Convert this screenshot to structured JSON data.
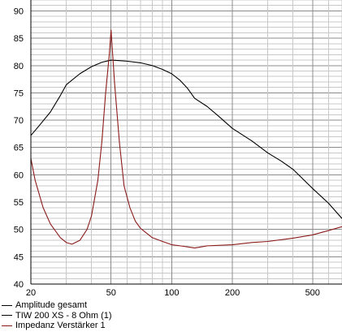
{
  "chart_data": {
    "type": "line",
    "title": "",
    "xlabel": "",
    "ylabel": "",
    "x_scale": "log",
    "xlim": [
      20,
      700
    ],
    "ylim": [
      40,
      92
    ],
    "grid": true,
    "legend_position": "bottom-left",
    "x_tick_labels": [
      {
        "value": 20,
        "label": "20"
      },
      {
        "value": 50,
        "label": "50"
      },
      {
        "value": 100,
        "label": "100"
      },
      {
        "value": 200,
        "label": "200"
      },
      {
        "value": 500,
        "label": "500"
      }
    ],
    "y_tick_labels": [
      {
        "value": 40,
        "label": "40"
      },
      {
        "value": 45,
        "label": "45"
      },
      {
        "value": 50,
        "label": "50"
      },
      {
        "value": 55,
        "label": "55"
      },
      {
        "value": 60,
        "label": "60"
      },
      {
        "value": 65,
        "label": "65"
      },
      {
        "value": 70,
        "label": "70"
      },
      {
        "value": 75,
        "label": "75"
      },
      {
        "value": 80,
        "label": "80"
      },
      {
        "value": 85,
        "label": "85"
      },
      {
        "value": 90,
        "label": "90"
      }
    ],
    "series": [
      {
        "name": "Amplitude gesamt",
        "color": "#000000",
        "x": [
          20,
          22,
          25,
          28,
          30,
          35,
          40,
          45,
          50,
          55,
          60,
          70,
          80,
          90,
          100,
          110,
          120,
          130,
          150,
          170,
          200,
          250,
          300,
          350,
          400,
          500,
          600,
          700
        ],
        "y": [
          67.2,
          69,
          71.5,
          74.5,
          76.5,
          78.5,
          79.8,
          80.6,
          81.0,
          80.9,
          80.8,
          80.5,
          80.0,
          79.3,
          78.5,
          77.3,
          75.8,
          74.0,
          72.5,
          70.8,
          68.5,
          66.2,
          64.0,
          62.5,
          61.0,
          57.5,
          54.8,
          52.0
        ]
      },
      {
        "name": "TIW 200 XS - 8 Ohm (1)",
        "color": "#000000",
        "x": [],
        "y": []
      },
      {
        "name": "Impedanz Verstärker 1",
        "color": "#8b1a1a",
        "x": [
          20,
          21,
          23,
          25,
          28,
          30,
          32,
          35,
          38,
          40,
          43,
          45,
          47,
          49,
          50,
          52,
          55,
          58,
          62,
          66,
          70,
          80,
          90,
          100,
          110,
          120,
          130,
          150,
          200,
          250,
          300,
          400,
          500,
          600,
          700
        ],
        "y": [
          63,
          59,
          54,
          51,
          48.5,
          47.6,
          47.3,
          48,
          50,
          52.5,
          59,
          66,
          75,
          82,
          86.5,
          77,
          66,
          58,
          54,
          51.5,
          50.2,
          48.5,
          47.8,
          47.2,
          47.0,
          46.8,
          46.6,
          47.0,
          47.2,
          47.6,
          47.8,
          48.4,
          49.0,
          49.8,
          50.5
        ]
      }
    ]
  }
}
